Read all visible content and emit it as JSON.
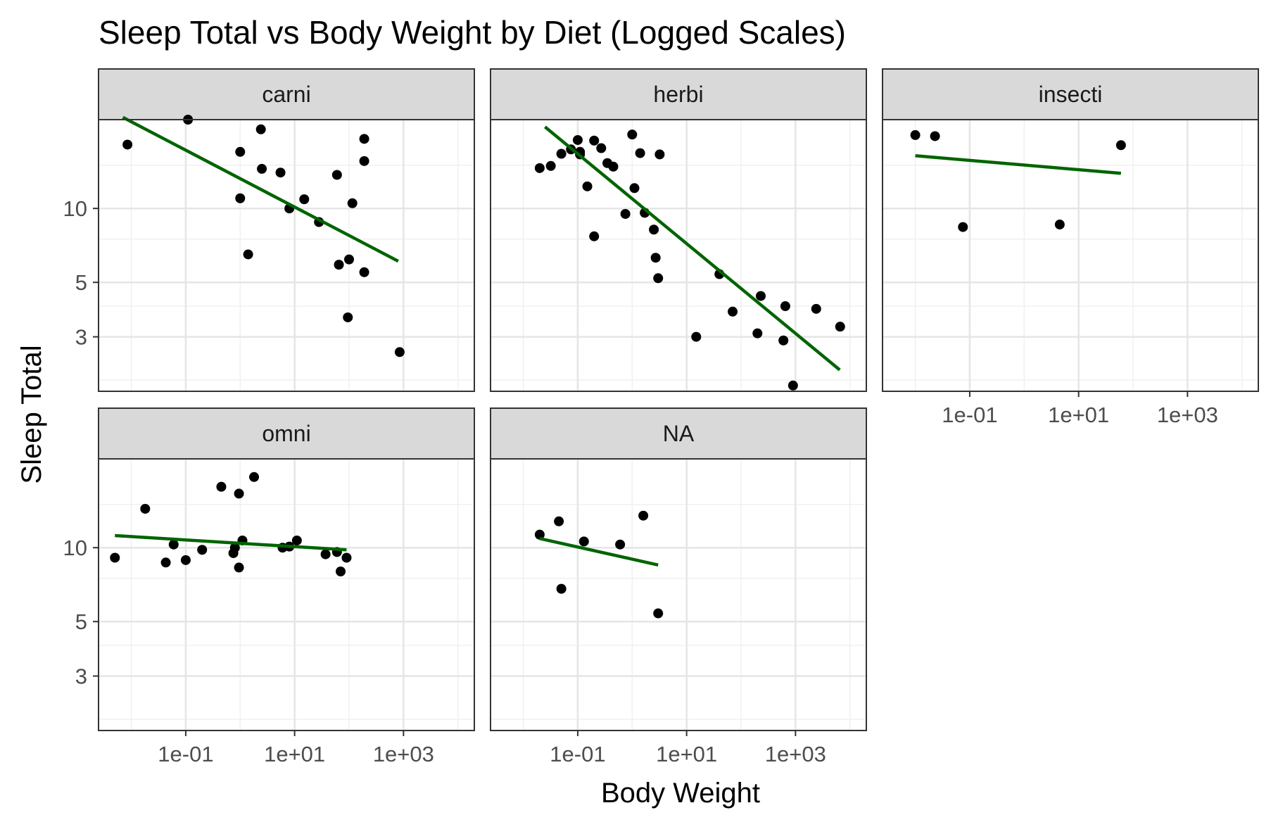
{
  "chart_data": {
    "type": "scatter",
    "title": "Sleep Total vs Body Weight by Diet (Logged Scales)",
    "xlabel": "Body Weight",
    "ylabel": "Sleep Total",
    "x_scale": "log10",
    "y_scale": "log10",
    "xlim": [
      0.0025,
      20000
    ],
    "ylim": [
      1.8,
      23
    ],
    "x_ticks": [
      {
        "value": 0.1,
        "label": "1e-01"
      },
      {
        "value": 10,
        "label": "1e+01"
      },
      {
        "value": 1000,
        "label": "1e+03"
      }
    ],
    "y_ticks": [
      {
        "value": 3,
        "label": "3"
      },
      {
        "value": 5,
        "label": "5"
      },
      {
        "value": 10,
        "label": "10"
      }
    ],
    "grid": true,
    "fit_line_color": "#006400",
    "point_color": "#000000",
    "panels": [
      {
        "label": "carni",
        "points": [
          [
            0.0085,
            18.2
          ],
          [
            0.11,
            23.0
          ],
          [
            1.0,
            17.0
          ],
          [
            1.0,
            11.0
          ],
          [
            5.5,
            14.0
          ],
          [
            8.0,
            10.0
          ],
          [
            15.0,
            10.9
          ],
          [
            2.5,
            14.5
          ],
          [
            2.4,
            21.0
          ],
          [
            1.4,
            6.5
          ],
          [
            28.0,
            8.8
          ],
          [
            60.0,
            13.7
          ],
          [
            65.0,
            5.9
          ],
          [
            100.0,
            6.2
          ],
          [
            115.0,
            10.5
          ],
          [
            190.0,
            19.2
          ],
          [
            190.0,
            15.6
          ],
          [
            190.0,
            5.5
          ],
          [
            95.0,
            3.6
          ],
          [
            850.0,
            2.6
          ]
        ],
        "fit": [
          [
            0.007,
            23.5
          ],
          [
            800.0,
            6.1
          ]
        ]
      },
      {
        "label": "herbi",
        "points": [
          [
            0.02,
            14.6
          ],
          [
            0.032,
            14.9
          ],
          [
            0.05,
            16.7
          ],
          [
            0.075,
            17.4
          ],
          [
            0.1,
            19.0
          ],
          [
            0.11,
            17.0
          ],
          [
            0.11,
            16.6
          ],
          [
            0.15,
            12.3
          ],
          [
            0.2,
            18.9
          ],
          [
            0.2,
            7.7
          ],
          [
            0.27,
            17.6
          ],
          [
            0.35,
            15.3
          ],
          [
            0.45,
            14.8
          ],
          [
            0.75,
            9.5
          ],
          [
            1.0,
            20.0
          ],
          [
            1.1,
            12.1
          ],
          [
            1.4,
            16.8
          ],
          [
            1.7,
            9.6
          ],
          [
            2.5,
            8.2
          ],
          [
            2.7,
            6.3
          ],
          [
            3.0,
            5.2
          ],
          [
            3.2,
            16.6
          ],
          [
            15.0,
            3.0
          ],
          [
            40.0,
            5.4
          ],
          [
            70.0,
            3.8
          ],
          [
            200.0,
            3.1
          ],
          [
            230.0,
            4.4
          ],
          [
            600.0,
            2.9
          ],
          [
            650.0,
            4.0
          ],
          [
            900.0,
            1.9
          ],
          [
            2400.0,
            3.9
          ],
          [
            6600.0,
            3.3
          ]
        ],
        "fit": [
          [
            0.025,
            21.5
          ],
          [
            6500.0,
            2.2
          ]
        ]
      },
      {
        "label": "insecti",
        "points": [
          [
            0.01,
            19.9
          ],
          [
            0.023,
            19.7
          ],
          [
            0.075,
            8.4
          ],
          [
            4.5,
            8.6
          ],
          [
            60.0,
            18.1
          ]
        ],
        "fit": [
          [
            0.01,
            16.4
          ],
          [
            60.0,
            13.9
          ]
        ]
      },
      {
        "label": "omni",
        "points": [
          [
            0.005,
            9.1
          ],
          [
            0.018,
            14.4
          ],
          [
            0.043,
            8.7
          ],
          [
            0.06,
            10.3
          ],
          [
            0.1,
            8.9
          ],
          [
            0.2,
            9.8
          ],
          [
            0.45,
            17.7
          ],
          [
            0.75,
            9.5
          ],
          [
            0.8,
            10.0
          ],
          [
            0.95,
            16.6
          ],
          [
            0.95,
            8.3
          ],
          [
            1.1,
            10.7
          ],
          [
            1.8,
            19.4
          ],
          [
            6.0,
            10.0
          ],
          [
            8.0,
            10.1
          ],
          [
            11.0,
            10.7
          ],
          [
            37.0,
            9.4
          ],
          [
            60.0,
            9.6
          ],
          [
            70.0,
            8.0
          ],
          [
            90.0,
            9.1
          ]
        ],
        "fit": [
          [
            0.005,
            11.2
          ],
          [
            90.0,
            9.8
          ]
        ]
      },
      {
        "label": "NA",
        "points": [
          [
            0.02,
            11.3
          ],
          [
            0.045,
            12.8
          ],
          [
            0.05,
            6.8
          ],
          [
            0.13,
            10.6
          ],
          [
            0.6,
            10.3
          ],
          [
            1.6,
            13.5
          ],
          [
            3.0,
            5.4
          ]
        ],
        "fit": [
          [
            0.02,
            10.9
          ],
          [
            3.0,
            8.5
          ]
        ]
      }
    ]
  }
}
